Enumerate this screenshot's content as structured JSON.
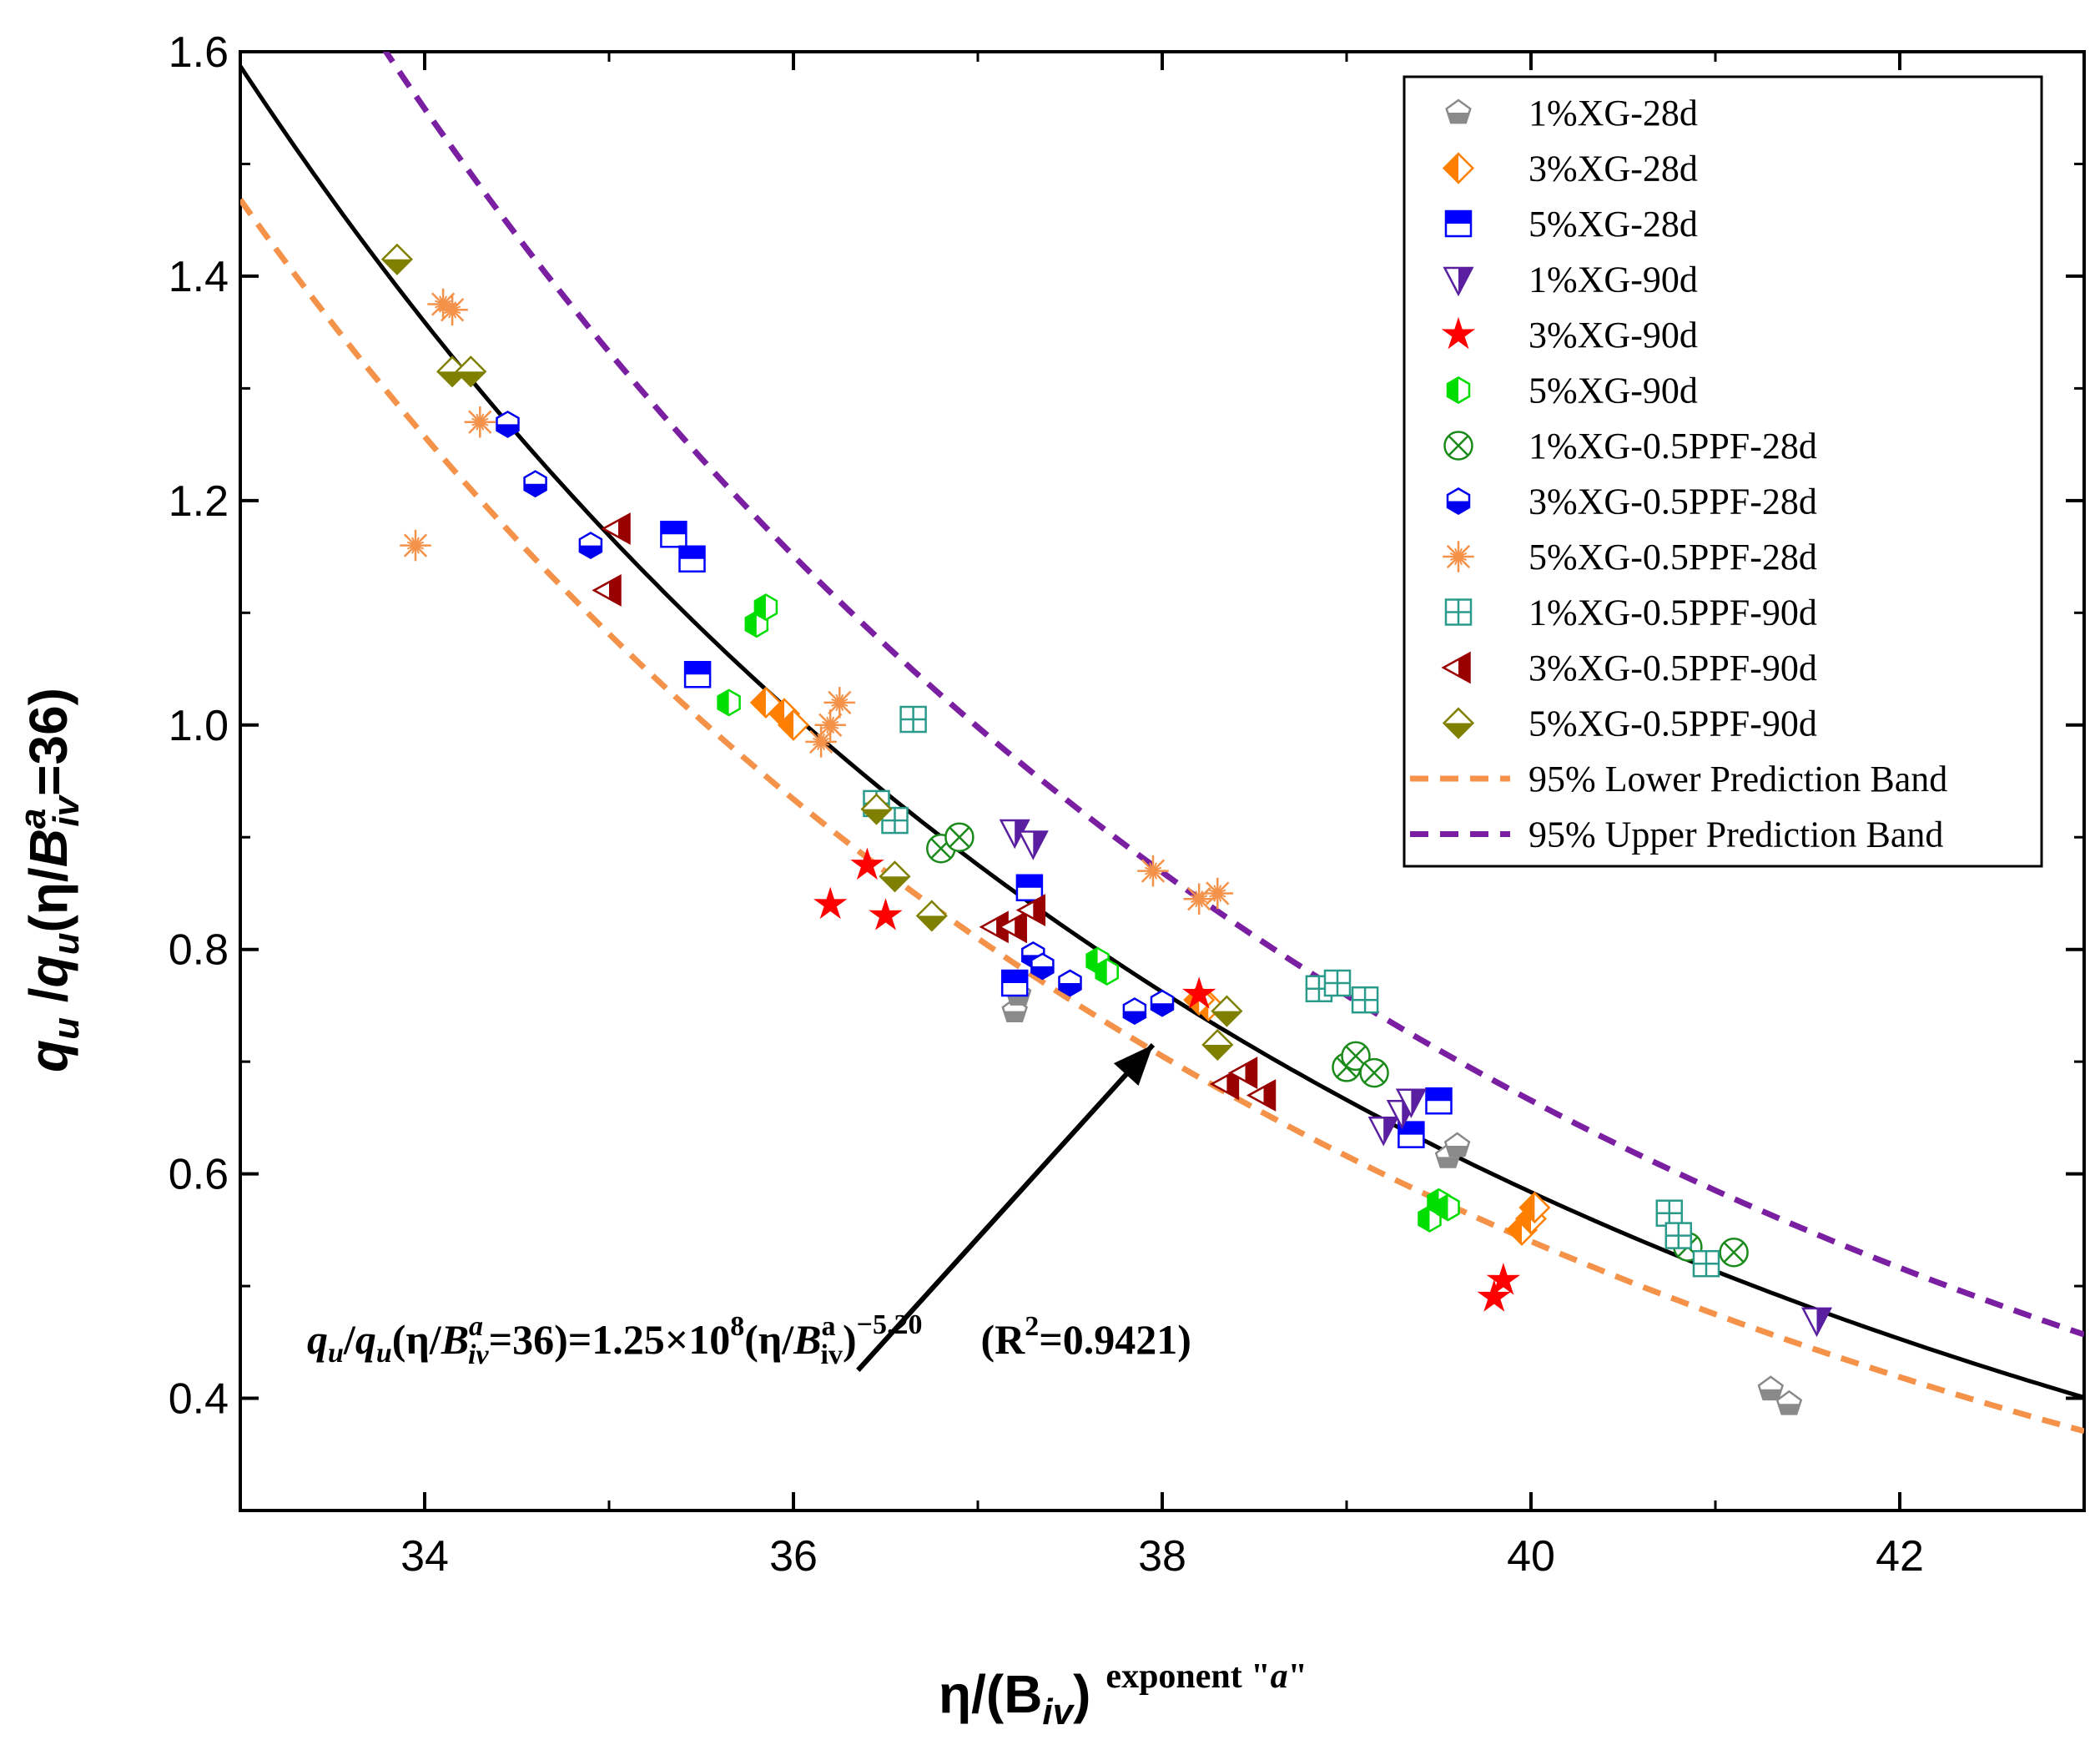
{
  "chart_data": {
    "type": "scatter",
    "xlabel": {
      "main": "η/(B",
      "sub": "iv",
      "close": ")",
      "sup_prefix": "exponent \"",
      "sup_italic": "a",
      "sup_suffix": "\""
    },
    "ylabel": {
      "q1": "q",
      "u1": "u",
      "slash": " /",
      "q2": "q",
      "u2": "u",
      "open": "(η/",
      "B": "B",
      "sub": "iv",
      "sup": "a",
      "tail": "=36)"
    },
    "xlim": [
      33,
      43
    ],
    "ylim": [
      0.3,
      1.6
    ],
    "x_ticks": [
      34,
      36,
      38,
      40,
      42
    ],
    "x_tick_labels": [
      "34",
      "36",
      "38",
      "40",
      "42"
    ],
    "y_ticks": [
      0.4,
      0.6,
      0.8,
      1.0,
      1.2,
      1.4,
      1.6
    ],
    "y_tick_labels": [
      "0.4",
      "0.6",
      "0.8",
      "1.0",
      "1.2",
      "1.4",
      "1.6"
    ],
    "grid": false,
    "legend_position": "top-right",
    "fit": {
      "coef": 125000000.0,
      "exp": -5.2,
      "color": "#000000"
    },
    "bands": [
      {
        "name": "95% Lower Prediction Band",
        "factor": 0.925,
        "color": "#f4924a"
      },
      {
        "name": "95% Upper Prediction Band",
        "factor": 1.14,
        "color": "#7a1fa2"
      }
    ],
    "equation": {
      "q": "q",
      "u": "u",
      "slash": "/",
      "q2": "q",
      "u2": "u",
      "paren": "(η/",
      "B": "B",
      "B_sup": "a",
      "B_sub": "iv",
      "eq": "=36)=1.25×10",
      "exp10": "8",
      "paren2": "(η/",
      "B2": "B",
      "B2_sup": "a",
      "B2_sub": "iv",
      "close": ")",
      "exp2": "−5.20",
      "r2": "(R",
      "r2_sup": "2",
      "r2_val": "=0.9421)"
    },
    "series": [
      {
        "name": "1%XG-28d",
        "marker": "pentagon",
        "fill": "bottom",
        "color": "#8a8a8a",
        "points": [
          [
            37.2,
            0.745
          ],
          [
            37.22,
            0.76
          ],
          [
            39.55,
            0.615
          ],
          [
            39.6,
            0.625
          ],
          [
            41.3,
            0.408
          ],
          [
            41.4,
            0.395
          ]
        ]
      },
      {
        "name": "3%XG-28d",
        "marker": "diamond",
        "fill": "left",
        "color": "#ff8000",
        "points": [
          [
            35.85,
            1.02
          ],
          [
            35.95,
            1.01
          ],
          [
            36.0,
            1.0
          ],
          [
            38.25,
            0.75
          ],
          [
            38.2,
            0.755
          ],
          [
            39.95,
            0.55
          ],
          [
            40.0,
            0.56
          ],
          [
            40.02,
            0.57
          ]
        ]
      },
      {
        "name": "5%XG-28d",
        "marker": "square",
        "fill": "top",
        "color": "#0000ff",
        "points": [
          [
            35.35,
            1.17
          ],
          [
            35.45,
            1.148
          ],
          [
            35.48,
            1.045
          ],
          [
            37.2,
            0.77
          ],
          [
            37.28,
            0.855
          ],
          [
            39.35,
            0.635
          ],
          [
            39.5,
            0.665
          ]
        ]
      },
      {
        "name": "1%XG-90d",
        "marker": "tri_down",
        "fill": "right",
        "color": "#5a1fa0",
        "points": [
          [
            37.2,
            0.905
          ],
          [
            37.3,
            0.895
          ],
          [
            39.2,
            0.64
          ],
          [
            39.3,
            0.655
          ],
          [
            39.35,
            0.665
          ],
          [
            41.55,
            0.47
          ]
        ]
      },
      {
        "name": "3%XG-90d",
        "marker": "star",
        "fill": "solid_red",
        "color": "#ff0000",
        "points": [
          [
            36.2,
            0.84
          ],
          [
            36.4,
            0.875
          ],
          [
            36.5,
            0.83
          ],
          [
            38.2,
            0.76
          ],
          [
            39.8,
            0.49
          ],
          [
            39.85,
            0.505
          ]
        ]
      },
      {
        "name": "5%XG-90d",
        "marker": "hexagon",
        "fill": "left",
        "color": "#00dd00",
        "points": [
          [
            35.65,
            1.02
          ],
          [
            35.8,
            1.09
          ],
          [
            35.85,
            1.105
          ],
          [
            37.65,
            0.79
          ],
          [
            37.7,
            0.78
          ],
          [
            39.45,
            0.56
          ],
          [
            39.5,
            0.575
          ],
          [
            39.55,
            0.57
          ]
        ]
      },
      {
        "name": "1%XG-0.5PPF-28d",
        "marker": "circlex",
        "fill": "none",
        "color": "#1a8a1a",
        "points": [
          [
            36.8,
            0.89
          ],
          [
            36.9,
            0.9
          ],
          [
            39.0,
            0.695
          ],
          [
            39.05,
            0.705
          ],
          [
            39.15,
            0.69
          ],
          [
            40.85,
            0.535
          ],
          [
            41.1,
            0.53
          ]
        ]
      },
      {
        "name": "3%XG-0.5PPF-28d",
        "marker": "hexagon",
        "fill": "bottom",
        "color": "#0000ee",
        "points": [
          [
            34.45,
            1.268
          ],
          [
            34.6,
            1.215
          ],
          [
            34.9,
            1.16
          ],
          [
            37.3,
            0.795
          ],
          [
            37.35,
            0.785
          ],
          [
            37.5,
            0.77
          ],
          [
            37.85,
            0.745
          ],
          [
            38.0,
            0.752
          ]
        ]
      },
      {
        "name": "5%XG-0.5PPF-28d",
        "marker": "asterisk",
        "fill": "none",
        "color": "#f4924a",
        "points": [
          [
            33.95,
            1.16
          ],
          [
            34.1,
            1.375
          ],
          [
            34.15,
            1.37
          ],
          [
            34.3,
            1.27
          ],
          [
            36.15,
            0.985
          ],
          [
            36.2,
            1.0
          ],
          [
            36.25,
            1.02
          ],
          [
            37.95,
            0.87
          ],
          [
            38.2,
            0.845
          ],
          [
            38.3,
            0.85
          ]
        ]
      },
      {
        "name": "1%XG-0.5PPF-90d",
        "marker": "squareplus",
        "fill": "none",
        "color": "#2a9a8a",
        "points": [
          [
            36.45,
            0.93
          ],
          [
            36.55,
            0.915
          ],
          [
            36.65,
            1.005
          ],
          [
            38.85,
            0.765
          ],
          [
            38.95,
            0.77
          ],
          [
            39.1,
            0.755
          ],
          [
            40.75,
            0.565
          ],
          [
            40.8,
            0.545
          ],
          [
            40.95,
            0.52
          ]
        ]
      },
      {
        "name": "3%XG-0.5PPF-90d",
        "marker": "tri_left",
        "fill": "right",
        "color": "#990000",
        "points": [
          [
            35.0,
            1.12
          ],
          [
            35.05,
            1.175
          ],
          [
            37.1,
            0.82
          ],
          [
            37.2,
            0.82
          ],
          [
            37.3,
            0.835
          ],
          [
            38.35,
            0.68
          ],
          [
            38.45,
            0.69
          ],
          [
            38.55,
            0.67
          ]
        ]
      },
      {
        "name": "5%XG-0.5PPF-90d",
        "marker": "diamond",
        "fill": "bottom",
        "color": "#808000",
        "points": [
          [
            33.85,
            1.415
          ],
          [
            34.15,
            1.315
          ],
          [
            34.25,
            1.315
          ],
          [
            36.45,
            0.925
          ],
          [
            36.55,
            0.865
          ],
          [
            36.75,
            0.83
          ],
          [
            38.3,
            0.715
          ],
          [
            38.35,
            0.745
          ]
        ]
      }
    ]
  }
}
